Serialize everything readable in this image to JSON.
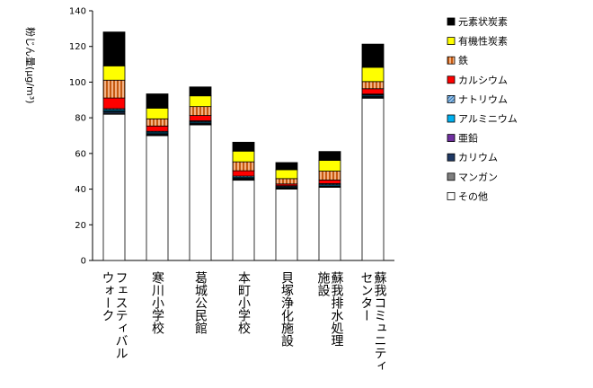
{
  "chart_data": {
    "type": "bar",
    "stacked": true,
    "ylabel": "粉じん量(μg/m³)",
    "ylim": [
      0,
      140
    ],
    "yticks": [
      0,
      20,
      40,
      60,
      80,
      100,
      120,
      140
    ],
    "grid": false,
    "legend_position": "right",
    "categories": [
      "フェスティバルウォーク",
      "寒川小学校",
      "葛城公民館",
      "本町小学校",
      "貝塚浄化施設",
      "蘇我排水処理施設",
      "蘇我コミュニティセンター"
    ],
    "category_lines": [
      [
        "フェスティバル",
        "ウォーク"
      ],
      [
        "寒川小学校"
      ],
      [
        "葛城公民館"
      ],
      [
        "本町小学校"
      ],
      [
        "貝塚浄化施設"
      ],
      [
        "蘇我排水処理",
        "施設"
      ],
      [
        "蘇我コミュニティ",
        "センター"
      ]
    ],
    "series": [
      {
        "name": "その他",
        "color": "#ffffff",
        "pattern": "none",
        "values": [
          82,
          70,
          76,
          45,
          40,
          41,
          91
        ]
      },
      {
        "name": "マンガン",
        "color": "#7f7f7f",
        "pattern": "none",
        "values": [
          0.5,
          0.4,
          0.4,
          0.3,
          0.3,
          0.3,
          0.4
        ]
      },
      {
        "name": "カリウム",
        "color": "#1f3864",
        "pattern": "none",
        "values": [
          0.8,
          0.5,
          0.5,
          0.5,
          0.4,
          0.4,
          0.6
        ]
      },
      {
        "name": "亜鉛",
        "color": "#7030a0",
        "pattern": "none",
        "values": [
          0.4,
          0.3,
          0.3,
          0.3,
          0.2,
          0.2,
          0.3
        ]
      },
      {
        "name": "アルミニウム",
        "color": "#00b0f0",
        "pattern": "none",
        "values": [
          0.8,
          0.7,
          0.6,
          0.6,
          0.5,
          0.6,
          0.6
        ]
      },
      {
        "name": "ナトリウム",
        "color": "#9dc3e6",
        "pattern": "diagonal",
        "values": [
          0.6,
          0.5,
          0.5,
          0.6,
          0.5,
          0.6,
          0.4
        ]
      },
      {
        "name": "カルシウム",
        "color": "#ff0000",
        "pattern": "none",
        "values": [
          6,
          3,
          3,
          3,
          1,
          2,
          3
        ]
      },
      {
        "name": "鉄",
        "color": "#c55a11",
        "pattern": "stripes",
        "values": [
          10,
          4,
          5,
          5,
          3,
          5,
          4
        ]
      },
      {
        "name": "有機性炭素",
        "color": "#ffff00",
        "pattern": "none",
        "values": [
          8,
          6,
          6,
          6,
          5,
          6,
          8
        ]
      },
      {
        "name": "元素状炭素",
        "color": "#000000",
        "pattern": "none",
        "values": [
          19,
          8,
          5,
          5,
          4,
          5,
          13
        ]
      }
    ]
  }
}
